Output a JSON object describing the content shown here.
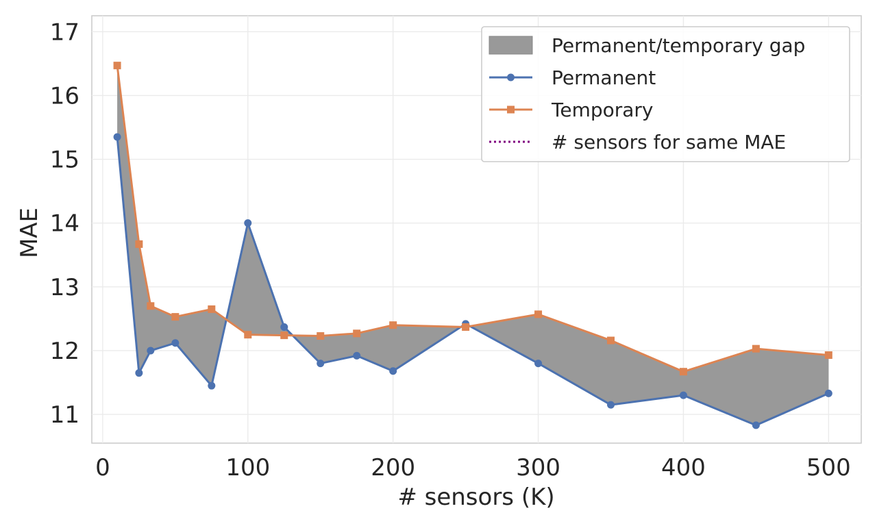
{
  "chart_data": {
    "type": "line",
    "title": "",
    "xlabel": "# sensors (K)",
    "ylabel": "MAE",
    "xlim": [
      -7.5,
      522.5
    ],
    "ylim": [
      10.55,
      17.25
    ],
    "xticks": [
      0,
      100,
      200,
      300,
      400,
      500
    ],
    "yticks": [
      11,
      12,
      13,
      14,
      15,
      16,
      17
    ],
    "grid": true,
    "legend_position": "top-right",
    "x": [
      10,
      25,
      33,
      50,
      75,
      100,
      125,
      150,
      175,
      200,
      250,
      300,
      350,
      400,
      450,
      500
    ],
    "series": [
      {
        "name": "Permanent",
        "color": "#4c72b0",
        "marker": "circle",
        "values": [
          15.35,
          11.65,
          12.0,
          12.12,
          11.45,
          14.0,
          12.37,
          11.8,
          11.92,
          11.68,
          12.42,
          11.8,
          11.15,
          11.3,
          10.83,
          11.33
        ]
      },
      {
        "name": "Temporary",
        "color": "#dd8452",
        "marker": "square",
        "values": [
          16.47,
          13.67,
          12.7,
          12.53,
          12.65,
          12.25,
          12.24,
          12.23,
          12.27,
          12.4,
          12.37,
          12.57,
          12.16,
          11.67,
          12.03,
          11.93
        ]
      }
    ],
    "fill_between": {
      "name": "Permanent/temporary gap",
      "color": "#999999",
      "between": [
        "Permanent",
        "Temporary"
      ]
    },
    "legend": [
      {
        "label": "Permanent/temporary gap",
        "kind": "patch",
        "color": "#999999"
      },
      {
        "label": "Permanent",
        "kind": "line-marker",
        "color": "#4c72b0",
        "marker": "circle"
      },
      {
        "label": "Temporary",
        "kind": "line-marker",
        "color": "#dd8452",
        "marker": "square"
      },
      {
        "label": "# sensors for same MAE",
        "kind": "dotted-line",
        "color": "#800080"
      }
    ]
  }
}
